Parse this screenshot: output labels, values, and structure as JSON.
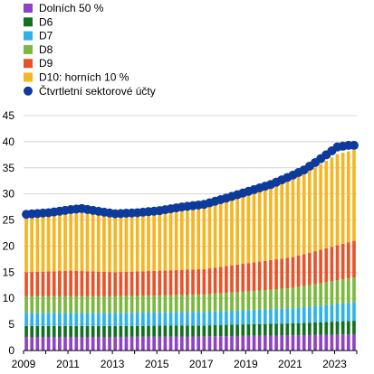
{
  "chart_data": {
    "type": "bar",
    "stacked": true,
    "title": "",
    "xlabel": "",
    "ylabel": "",
    "ylim": [
      0,
      45
    ],
    "y_ticks": [
      0,
      5,
      10,
      15,
      20,
      25,
      30,
      35,
      40,
      45
    ],
    "x_tick_labels": [
      "2009",
      "2011",
      "2013",
      "2015",
      "2017",
      "2019",
      "2021",
      "2023"
    ],
    "grid": "horizontal",
    "legend_position": "top-left",
    "x_start": "2009 Q1",
    "frequency": "quarterly",
    "series": [
      {
        "name": "Dolních 50 %",
        "color": "#8E44C4",
        "anchors": [
          [
            0,
            2.6
          ],
          [
            16,
            2.6
          ],
          [
            32,
            2.7
          ],
          [
            48,
            2.9
          ],
          [
            59,
            3.1
          ]
        ]
      },
      {
        "name": "D6",
        "color": "#12711F",
        "anchors": [
          [
            0,
            2.1
          ],
          [
            16,
            2.1
          ],
          [
            32,
            2.1
          ],
          [
            48,
            2.3
          ],
          [
            59,
            2.6
          ]
        ]
      },
      {
        "name": "D7",
        "color": "#2DB3E8",
        "anchors": [
          [
            0,
            2.5
          ],
          [
            16,
            2.5
          ],
          [
            32,
            2.6
          ],
          [
            48,
            2.9
          ],
          [
            59,
            3.5
          ]
        ]
      },
      {
        "name": "D8",
        "color": "#7CB83E",
        "anchors": [
          [
            0,
            3.2
          ],
          [
            16,
            3.2
          ],
          [
            32,
            3.3
          ],
          [
            48,
            3.9
          ],
          [
            59,
            4.8
          ]
        ]
      },
      {
        "name": "D9",
        "color": "#E8542A",
        "anchors": [
          [
            0,
            4.6
          ],
          [
            8,
            4.9
          ],
          [
            16,
            4.6
          ],
          [
            32,
            4.9
          ],
          [
            48,
            5.9
          ],
          [
            59,
            7.0
          ]
        ]
      },
      {
        "name": "D10: horních 10 %",
        "color": "#F5B621",
        "anchors": [
          [
            0,
            10.8
          ],
          [
            8,
            11.4
          ],
          [
            16,
            10.7
          ],
          [
            24,
            11.0
          ],
          [
            32,
            11.8
          ],
          [
            40,
            13.0
          ],
          [
            48,
            14.8
          ],
          [
            52,
            16.0
          ],
          [
            56,
            17.5
          ],
          [
            59,
            17.4
          ]
        ]
      }
    ],
    "overlay": {
      "name": "Čtvrtletní sektorové účty",
      "color": "#0E3A9C",
      "type": "scatter",
      "anchors": [
        [
          0,
          26.1
        ],
        [
          4,
          26.4
        ],
        [
          8,
          27.0
        ],
        [
          10,
          27.2
        ],
        [
          14,
          26.5
        ],
        [
          16,
          26.2
        ],
        [
          20,
          26.4
        ],
        [
          24,
          26.8
        ],
        [
          28,
          27.5
        ],
        [
          32,
          28.0
        ],
        [
          36,
          29.2
        ],
        [
          40,
          30.5
        ],
        [
          44,
          31.8
        ],
        [
          48,
          33.6
        ],
        [
          50,
          34.6
        ],
        [
          52,
          36.0
        ],
        [
          54,
          37.5
        ],
        [
          56,
          39.0
        ],
        [
          58,
          39.3
        ],
        [
          59,
          39.3
        ]
      ]
    }
  }
}
